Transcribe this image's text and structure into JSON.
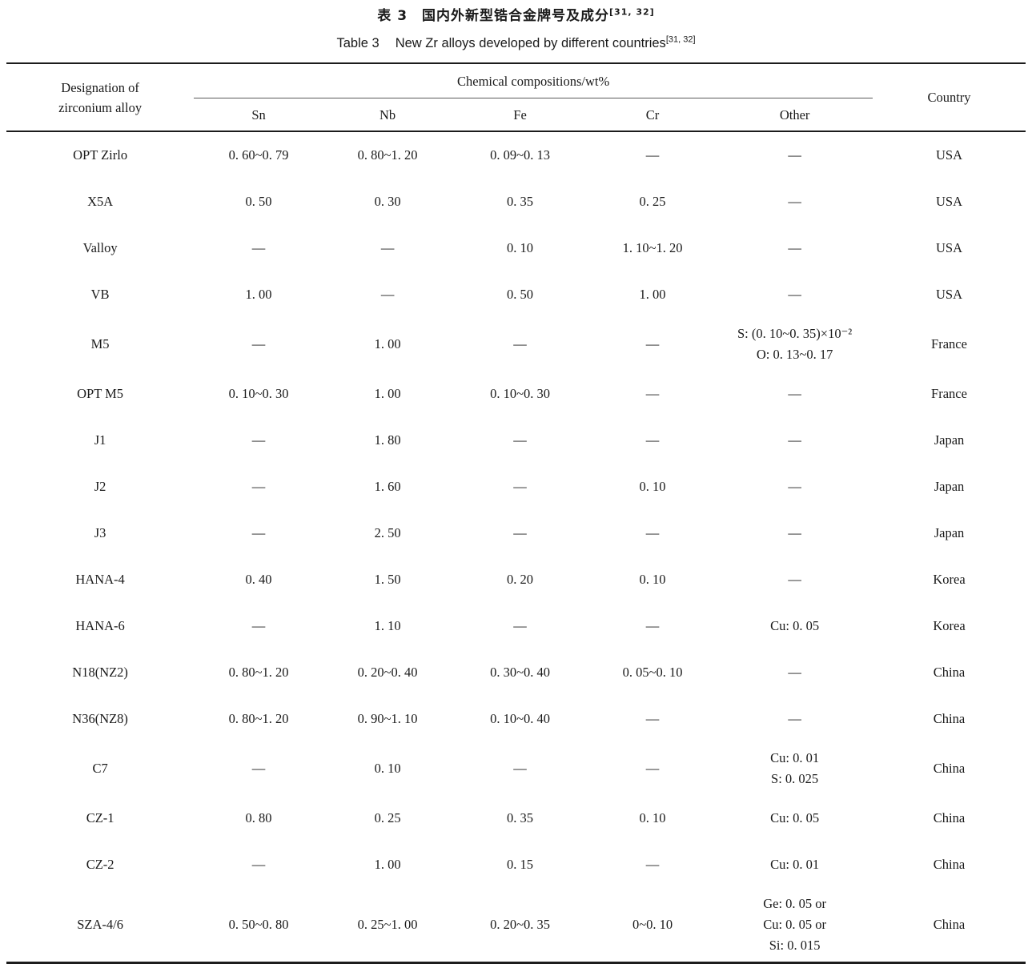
{
  "caption": {
    "zh_label": "表 3",
    "zh_title": "国内外新型锆合金牌号及成分",
    "zh_ref": "[31, 32]",
    "en_label": "Table 3",
    "en_title": "New Zr alloys developed by different countries",
    "en_ref": "[31, 32]"
  },
  "table": {
    "headers": {
      "designation_line1": "Designation of",
      "designation_line2": "zirconium alloy",
      "chemical_group": "Chemical compositions/wt%",
      "elements": [
        "Sn",
        "Nb",
        "Fe",
        "Cr",
        "Other"
      ],
      "country": "Country"
    },
    "rows": [
      {
        "name": "OPT Zirlo",
        "sn": "0. 60~0. 79",
        "nb": "0. 80~1. 20",
        "fe": "0. 09~0. 13",
        "cr": "—",
        "other": [
          "—"
        ],
        "country": "USA"
      },
      {
        "name": "X5A",
        "sn": "0. 50",
        "nb": "0. 30",
        "fe": "0. 35",
        "cr": "0. 25",
        "other": [
          "—"
        ],
        "country": "USA"
      },
      {
        "name": "Valloy",
        "sn": "—",
        "nb": "—",
        "fe": "0. 10",
        "cr": "1. 10~1. 20",
        "other": [
          "—"
        ],
        "country": "USA"
      },
      {
        "name": "VB",
        "sn": "1. 00",
        "nb": "—",
        "fe": "0. 50",
        "cr": "1. 00",
        "other": [
          "—"
        ],
        "country": "USA"
      },
      {
        "name": "M5",
        "sn": "—",
        "nb": "1. 00",
        "fe": "—",
        "cr": "—",
        "other": [
          "S: (0. 10~0. 35)×10⁻²",
          "O: 0. 13~0. 17"
        ],
        "country": "France"
      },
      {
        "name": "OPT M5",
        "sn": "0. 10~0. 30",
        "nb": "1. 00",
        "fe": "0. 10~0. 30",
        "cr": "—",
        "other": [
          "—"
        ],
        "country": "France"
      },
      {
        "name": "J1",
        "sn": "—",
        "nb": "1. 80",
        "fe": "—",
        "cr": "—",
        "other": [
          "—"
        ],
        "country": "Japan"
      },
      {
        "name": "J2",
        "sn": "—",
        "nb": "1. 60",
        "fe": "—",
        "cr": "0. 10",
        "other": [
          "—"
        ],
        "country": "Japan"
      },
      {
        "name": "J3",
        "sn": "—",
        "nb": "2. 50",
        "fe": "—",
        "cr": "—",
        "other": [
          "—"
        ],
        "country": "Japan"
      },
      {
        "name": "HANA-4",
        "sn": "0. 40",
        "nb": "1. 50",
        "fe": "0. 20",
        "cr": "0. 10",
        "other": [
          "—"
        ],
        "country": "Korea"
      },
      {
        "name": "HANA-6",
        "sn": "—",
        "nb": "1. 10",
        "fe": "—",
        "cr": "—",
        "other": [
          "Cu: 0. 05"
        ],
        "country": "Korea"
      },
      {
        "name": "N18(NZ2)",
        "sn": "0. 80~1. 20",
        "nb": "0. 20~0. 40",
        "fe": "0. 30~0. 40",
        "cr": "0. 05~0. 10",
        "other": [
          "—"
        ],
        "country": "China"
      },
      {
        "name": "N36(NZ8)",
        "sn": "0. 80~1. 20",
        "nb": "0. 90~1. 10",
        "fe": "0. 10~0. 40",
        "cr": "—",
        "other": [
          "—"
        ],
        "country": "China"
      },
      {
        "name": "C7",
        "sn": "—",
        "nb": "0. 10",
        "fe": "—",
        "cr": "—",
        "other": [
          "Cu: 0. 01",
          "S: 0. 025"
        ],
        "country": "China"
      },
      {
        "name": "CZ-1",
        "sn": "0. 80",
        "nb": "0. 25",
        "fe": "0. 35",
        "cr": "0. 10",
        "other": [
          "Cu: 0. 05"
        ],
        "country": "China"
      },
      {
        "name": "CZ-2",
        "sn": "—",
        "nb": "1. 00",
        "fe": "0. 15",
        "cr": "—",
        "other": [
          "Cu: 0. 01"
        ],
        "country": "China"
      },
      {
        "name": "SZA-4/6",
        "sn": "0. 50~0. 80",
        "nb": "0. 25~1. 00",
        "fe": "0. 20~0. 35",
        "cr": "0~0. 10",
        "other": [
          "Ge: 0. 05 or",
          "Cu: 0. 05 or",
          "Si: 0. 015"
        ],
        "country": "China"
      }
    ]
  }
}
